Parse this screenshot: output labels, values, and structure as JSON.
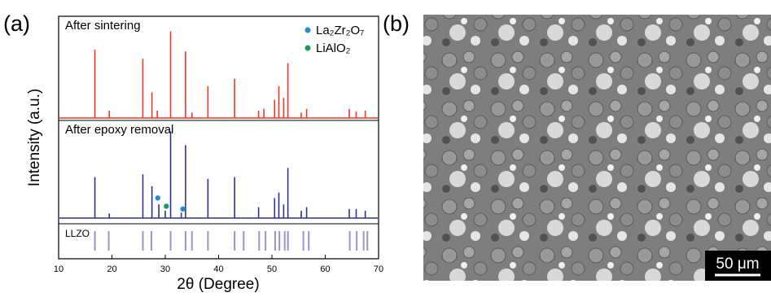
{
  "panel_labels": [
    "(a)",
    "(b)"
  ],
  "chart_data": {
    "type": "stick",
    "xlabel": "2θ (Degree)",
    "ylabel": "Intensity (a.u.)",
    "xlim": [
      10,
      70
    ],
    "xticks": [
      10,
      20,
      30,
      40,
      50,
      60,
      70
    ],
    "ylim": [
      0,
      100
    ],
    "panels": [
      {
        "name": "After sintering",
        "color": "#e8392b",
        "x": [
          16.8,
          19.5,
          25.8,
          27.5,
          28.5,
          31.0,
          33.8,
          35.0,
          38.0,
          43.0,
          47.5,
          48.5,
          50.5,
          51.3,
          52.2,
          53.0,
          55.5,
          56.5,
          64.5,
          65.8,
          67.5
        ],
        "values": [
          75,
          8,
          65,
          28,
          8,
          95,
          73,
          6,
          35,
          43,
          8,
          10,
          20,
          35,
          22,
          60,
          6,
          10,
          10,
          7,
          8
        ]
      },
      {
        "name": "After epoxy removal",
        "color": "#2e3192",
        "x": [
          16.8,
          19.5,
          25.8,
          27.5,
          28.8,
          30.0,
          31.0,
          33.0,
          33.8,
          38.0,
          43.0,
          47.5,
          50.5,
          51.3,
          52.2,
          53.0,
          55.5,
          56.5,
          64.5,
          65.8,
          67.5
        ],
        "values": [
          45,
          5,
          48,
          35,
          15,
          8,
          95,
          6,
          80,
          43,
          45,
          12,
          22,
          28,
          15,
          55,
          8,
          12,
          10,
          10,
          8
        ],
        "markers": [
          {
            "name": "La₂Zr₂O₇",
            "color": "#1f8fce",
            "x": [
              28.6,
              33.3
            ],
            "values": [
              22,
              10
            ]
          },
          {
            "name": "LiAlO₂",
            "color": "#14a05a",
            "x": [
              30.2
            ],
            "values": [
              13
            ]
          }
        ]
      },
      {
        "name": "LLZO",
        "color": "#7b6fb8",
        "x": [
          16.8,
          19.4,
          25.8,
          27.4,
          31.0,
          33.8,
          35.0,
          38.0,
          43.0,
          44.7,
          47.6,
          48.8,
          50.6,
          51.4,
          52.4,
          53.0,
          55.9,
          56.9,
          64.6,
          65.9,
          67.2,
          67.9
        ]
      }
    ]
  },
  "image": {
    "scale_bar": "50 μm"
  }
}
